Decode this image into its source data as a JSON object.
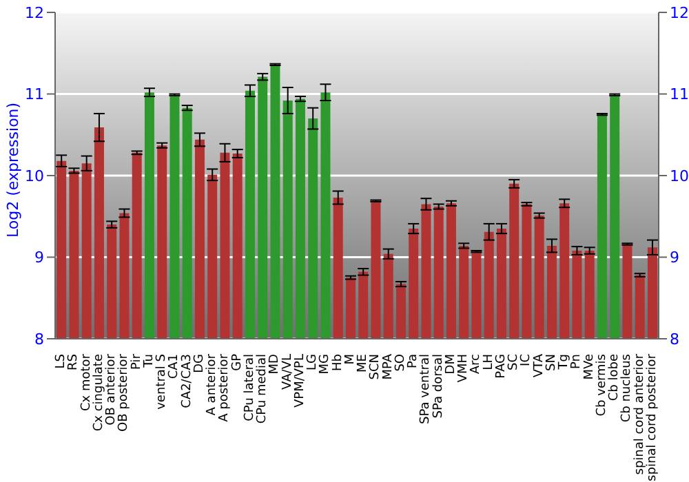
{
  "chart_data": {
    "type": "bar",
    "ylabel": "Log2 (expression)",
    "categories": [
      "LS",
      "RS",
      "Cx motor",
      "Cx cingulate",
      "OB anterior",
      "OB posterior",
      "Pir",
      "Tu",
      "ventral S",
      "CA1",
      "CA2/CA3",
      "DG",
      "A anterior",
      "A posterior",
      "GP",
      "CPu lateral",
      "CPu medial",
      "MD",
      "VA/VL",
      "VPM/VPL",
      "LG",
      "MG",
      "Hb",
      "M",
      "ME",
      "SCN",
      "MPA",
      "SO",
      "Pa",
      "SPa ventral",
      "SPa dorsal",
      "DM",
      "VMH",
      "Arc",
      "LH",
      "PAG",
      "SC",
      "IC",
      "VTA",
      "SN",
      "Tg",
      "Pn",
      "MVe",
      "Cb vermis",
      "Cb lobe",
      "Cb nucleus",
      "spinal cord anterior",
      "spinal cord posterior"
    ],
    "values": [
      10.18,
      10.06,
      10.15,
      10.59,
      9.4,
      9.54,
      10.28,
      11.02,
      10.37,
      10.99,
      10.83,
      10.44,
      10.01,
      10.28,
      10.27,
      11.04,
      11.21,
      11.36,
      10.92,
      10.94,
      10.7,
      11.02,
      9.73,
      8.75,
      8.82,
      9.69,
      9.04,
      8.67,
      9.35,
      9.65,
      9.62,
      9.66,
      9.14,
      9.07,
      9.31,
      9.35,
      9.9,
      9.65,
      9.51,
      9.14,
      9.66,
      9.08,
      9.08,
      10.75,
      10.99,
      9.16,
      8.78,
      9.12
    ],
    "errors": [
      0.07,
      0.03,
      0.09,
      0.17,
      0.04,
      0.05,
      0.02,
      0.05,
      0.03,
      0.01,
      0.03,
      0.08,
      0.07,
      0.11,
      0.05,
      0.07,
      0.04,
      0.01,
      0.16,
      0.03,
      0.13,
      0.1,
      0.08,
      0.02,
      0.04,
      0.01,
      0.06,
      0.03,
      0.06,
      0.07,
      0.03,
      0.03,
      0.03,
      0.01,
      0.1,
      0.06,
      0.05,
      0.02,
      0.03,
      0.08,
      0.05,
      0.05,
      0.04,
      0.01,
      0.01,
      0.01,
      0.02,
      0.09
    ],
    "colors": [
      "#b33333",
      "#b33333",
      "#b33333",
      "#b33333",
      "#b33333",
      "#b33333",
      "#b33333",
      "#2e9a2e",
      "#b33333",
      "#2e9a2e",
      "#2e9a2e",
      "#b33333",
      "#b33333",
      "#b33333",
      "#b33333",
      "#2e9a2e",
      "#2e9a2e",
      "#2e9a2e",
      "#2e9a2e",
      "#2e9a2e",
      "#2e9a2e",
      "#2e9a2e",
      "#b33333",
      "#b33333",
      "#b33333",
      "#b33333",
      "#b33333",
      "#b33333",
      "#b33333",
      "#b33333",
      "#b33333",
      "#b33333",
      "#b33333",
      "#b33333",
      "#b33333",
      "#b33333",
      "#b33333",
      "#b33333",
      "#b33333",
      "#b33333",
      "#b33333",
      "#b33333",
      "#b33333",
      "#2e9a2e",
      "#2e9a2e",
      "#b33333",
      "#b33333",
      "#b33333"
    ],
    "ylim": [
      8,
      12
    ],
    "yticks": [
      8,
      9,
      10,
      11,
      12
    ],
    "y2lim": [
      8,
      12
    ],
    "y2ticks": [
      8,
      9,
      10,
      11,
      12
    ],
    "grid": "y"
  }
}
